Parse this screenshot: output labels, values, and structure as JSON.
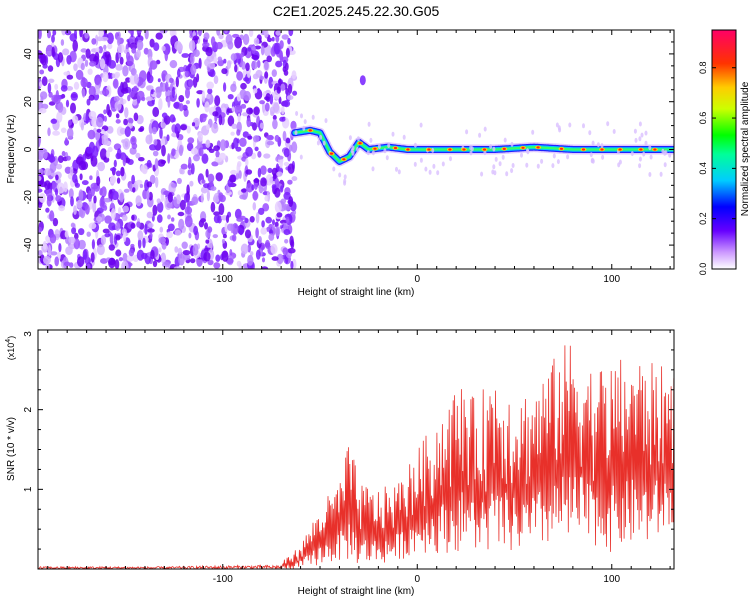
{
  "title": "C2E1.2025.245.22.30.G05",
  "chart_data": [
    {
      "type": "heatmap",
      "xlabel": "Height of straight line (km)",
      "ylabel": "Frequency (Hz)",
      "xlim": [
        -195,
        132
      ],
      "ylim": [
        -50,
        50
      ],
      "xticks": [
        -100,
        0,
        100
      ],
      "xtick_labels": [
        "-100",
        "0",
        "100"
      ],
      "yticks": [
        -40,
        -20,
        0,
        20,
        40
      ],
      "ytick_labels": [
        "-40",
        "-20",
        "0",
        "20",
        "40"
      ],
      "colorbar": {
        "label": "Normalized spectral amplitude",
        "range": [
          0,
          0.95
        ],
        "ticks": [
          0.0,
          0.2,
          0.4,
          0.6,
          0.8
        ],
        "tick_labels": [
          "0.0",
          "0.2",
          "0.4",
          "0.6",
          "0.8"
        ],
        "colormap": "rainbow-white-purple-blue-cyan-green-yellow-red-magenta"
      },
      "noise_region_x": [
        -195,
        -63
      ],
      "signal_track": {
        "x": [
          -63,
          -55,
          -50,
          -45,
          -40,
          -35,
          -30,
          -25,
          -15,
          -5,
          0,
          20,
          40,
          60,
          80,
          100,
          120,
          132
        ],
        "y": [
          7,
          8,
          7,
          -1,
          -5,
          -3,
          3,
          0,
          1,
          0,
          0,
          0,
          0,
          1,
          0,
          0,
          0,
          0
        ]
      },
      "outlier_blob": {
        "x": -28,
        "y": 29
      }
    },
    {
      "type": "line",
      "xlabel": "Height of straight line (km)",
      "ylabel": "SNR (10 * v/v)",
      "scale_label_main": "(x10",
      "scale_label_exp": "4",
      "scale_label_end": ")",
      "xlim": [
        -195,
        132
      ],
      "ylim": [
        0,
        3
      ],
      "xticks": [
        -100,
        0,
        100
      ],
      "xtick_labels": [
        "-100",
        "0",
        "100"
      ],
      "yticks": [
        1,
        2,
        3
      ],
      "ytick_labels": [
        "1",
        "2",
        "3"
      ],
      "line_color": "#e8302a",
      "envelope": {
        "x": [
          -195,
          -130,
          -100,
          -70,
          -60,
          -50,
          -40,
          -35,
          -30,
          -20,
          -10,
          0,
          10,
          20,
          25,
          30,
          40,
          50,
          60,
          70,
          80,
          90,
          100,
          110,
          120,
          132
        ],
        "min": [
          0,
          0,
          0,
          0,
          0,
          0.05,
          0.1,
          0.1,
          0.05,
          0.05,
          0.1,
          0.2,
          0.2,
          0.2,
          0.3,
          0.2,
          0.2,
          0.2,
          0.2,
          0.3,
          0.3,
          0.3,
          0.2,
          0.3,
          0.3,
          0.5
        ],
        "max": [
          0.05,
          0.05,
          0.07,
          0.08,
          0.3,
          0.8,
          1.1,
          1.65,
          1.1,
          1.0,
          1.1,
          1.5,
          1.9,
          2.3,
          2.35,
          2.1,
          2.55,
          2.2,
          2.3,
          2.65,
          2.95,
          2.55,
          2.6,
          2.7,
          2.6,
          2.5
        ]
      }
    }
  ]
}
